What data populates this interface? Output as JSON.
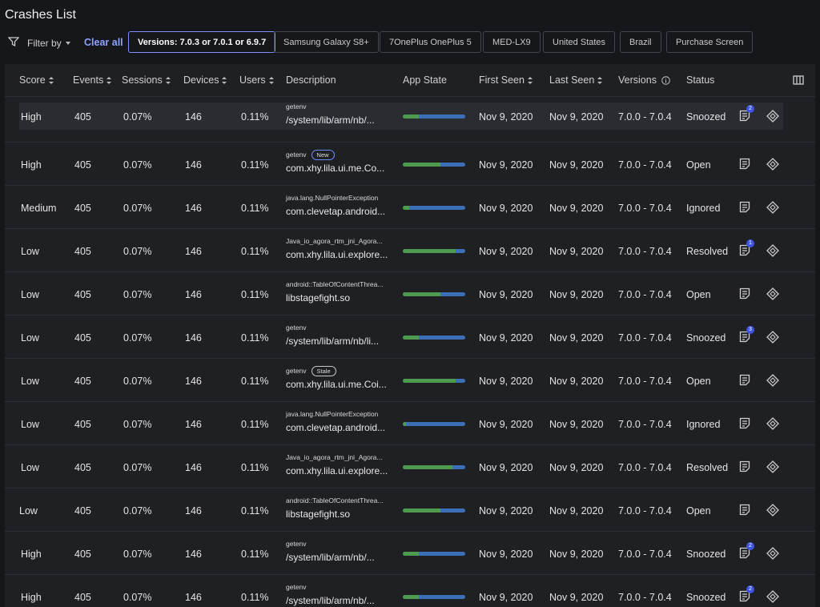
{
  "header": {
    "title": "Crashes List"
  },
  "filters": {
    "label": "Filter by",
    "clear": "Clear all",
    "selected": 0,
    "chips": [
      "Versions: 7.0.3 or 7.0.1 or 6.9.7",
      "Samsung Galaxy S8+",
      "7OnePlus OnePlus 5",
      "MED-LX9",
      "United States",
      "Brazil",
      "Purchase Screen"
    ]
  },
  "table": {
    "hover_row": 0,
    "columns": [
      {
        "label": "Score",
        "sortable": true
      },
      {
        "label": "Events",
        "sortable": true
      },
      {
        "label": "Sessions",
        "sortable": true
      },
      {
        "label": "Devices",
        "sortable": true
      },
      {
        "label": "Users",
        "sortable": true
      },
      {
        "label": "Description",
        "sortable": false
      },
      {
        "label": "App State",
        "sortable": false
      },
      {
        "label": "First Seen",
        "sortable": true
      },
      {
        "label": "Last Seen",
        "sortable": true
      },
      {
        "label": "Versions",
        "sortable": false,
        "info": true
      },
      {
        "label": "Status",
        "sortable": false
      }
    ],
    "rows": [
      {
        "score": "High",
        "events": "405",
        "sessions": "0.07%",
        "devices": "146",
        "users": "0.11%",
        "description": {
          "top": "getenv",
          "bottom": "/system/lib/arm/nb/..."
        },
        "app_state": 25,
        "first_seen": "Nov 9, 2020",
        "last_seen": "Nov 9, 2020",
        "versions": "7.0.0 - 7.0.4",
        "status": "Snoozed",
        "notes": "2"
      },
      {
        "score": "High",
        "events": "405",
        "sessions": "0.07%",
        "devices": "146",
        "users": "0.11%",
        "description": {
          "top": "getenv",
          "tag": "New",
          "bottom": "com.xhy.lila.ui.me.Co..."
        },
        "app_state": 60,
        "first_seen": "Nov 9, 2020",
        "last_seen": "Nov 9, 2020",
        "versions": "7.0.0 - 7.0.4",
        "status": "Open"
      },
      {
        "score": "Medium",
        "events": "405",
        "sessions": "0.07%",
        "devices": "146",
        "users": "0.11%",
        "description": {
          "top": "java.lang.NullPointerException",
          "bottom": "com.clevetap.android..."
        },
        "app_state": 10,
        "first_seen": "Nov 9, 2020",
        "last_seen": "Nov 9, 2020",
        "versions": "7.0.0 - 7.0.4",
        "status": "Ignored"
      },
      {
        "score": "Low",
        "events": "405",
        "sessions": "0.07%",
        "devices": "146",
        "users": "0.11%",
        "description": {
          "top": "Java_io_agora_rtm_jni_Agora...",
          "bottom": "com.xhy.lila.ui.explore..."
        },
        "app_state": 85,
        "first_seen": "Nov 9, 2020",
        "last_seen": "Nov 9, 2020",
        "versions": "7.0.0 - 7.0.4",
        "status": "Resolved",
        "notes": "1"
      },
      {
        "score": "Low",
        "events": "405",
        "sessions": "0.07%",
        "devices": "146",
        "users": "0.11%",
        "description": {
          "top": "android::TableOfContentThrea...",
          "bottom": "libstagefight.so"
        },
        "app_state": 60,
        "first_seen": "Nov 9, 2020",
        "last_seen": "Nov 9, 2020",
        "versions": "7.0.0 - 7.0.4",
        "status": "Open"
      },
      {
        "score": "Low",
        "events": "405",
        "sessions": "0.07%",
        "devices": "146",
        "users": "0.11%",
        "description": {
          "top": "getenv",
          "bottom": "/system/lib/arm/nb/li..."
        },
        "app_state": 25,
        "first_seen": "Nov 9, 2020",
        "last_seen": "Nov 9, 2020",
        "versions": "7.0.0 - 7.0.4",
        "status": "Snoozed",
        "notes": "3"
      },
      {
        "score": "Low",
        "events": "405",
        "sessions": "0.07%",
        "devices": "146",
        "users": "0.11%",
        "description": {
          "top": "getenv",
          "tag": "Stale",
          "bottom": "com.xhy.lila.ui.me.Coi..."
        },
        "app_state": 85,
        "first_seen": "Nov 9, 2020",
        "last_seen": "Nov 9, 2020",
        "versions": "7.0.0 - 7.0.4",
        "status": "Open"
      },
      {
        "score": "Low",
        "events": "405",
        "sessions": "0.07%",
        "devices": "146",
        "users": "0.11%",
        "description": {
          "top": "java.lang.NullPointerException",
          "bottom": "com.clevetap.android..."
        },
        "app_state": 5,
        "first_seen": "Nov 9, 2020",
        "last_seen": "Nov 9, 2020",
        "versions": "7.0.0 - 7.0.4",
        "status": "Ignored"
      },
      {
        "score": "Low",
        "events": "405",
        "sessions": "0.07%",
        "devices": "146",
        "users": "0.11%",
        "description": {
          "top": "Java_io_agora_rtm_jni_Agora...",
          "bottom": "com.xhy.lila.ui.explore..."
        },
        "app_state": 80,
        "first_seen": "Nov 9, 2020",
        "last_seen": "Nov 9, 2020",
        "versions": "7.0.0 - 7.0.4",
        "status": "Resolved"
      },
      {
        "score": "Low",
        "events": "405",
        "sessions": "0.07%",
        "devices": "146",
        "users": "0.11%",
        "description": {
          "top": "android::TableOfContentThrea...",
          "bottom": "libstagefight.so"
        },
        "app_state": 60,
        "first_seen": "Nov 9, 2020",
        "last_seen": "Nov 9, 2020",
        "versions": "7.0.0 - 7.0.4",
        "status": "Open"
      },
      {
        "score": "High",
        "events": "405",
        "sessions": "0.07%",
        "devices": "146",
        "users": "0.11%",
        "description": {
          "top": "getenv",
          "bottom": "/system/lib/arm/nb/..."
        },
        "app_state": 25,
        "first_seen": "Nov 9, 2020",
        "last_seen": "Nov 9, 2020",
        "versions": "7.0.0 - 7.0.4",
        "status": "Snoozed",
        "notes": "2"
      },
      {
        "score": "High",
        "events": "405",
        "sessions": "0.07%",
        "devices": "146",
        "users": "0.11%",
        "description": {
          "top": "getenv",
          "bottom": "/system/lib/arm/nb/..."
        },
        "app_state": 25,
        "first_seen": "Nov 9, 2020",
        "last_seen": "Nov 9, 2020",
        "versions": "7.0.0 - 7.0.4",
        "status": "Snoozed",
        "notes": "2"
      }
    ]
  }
}
